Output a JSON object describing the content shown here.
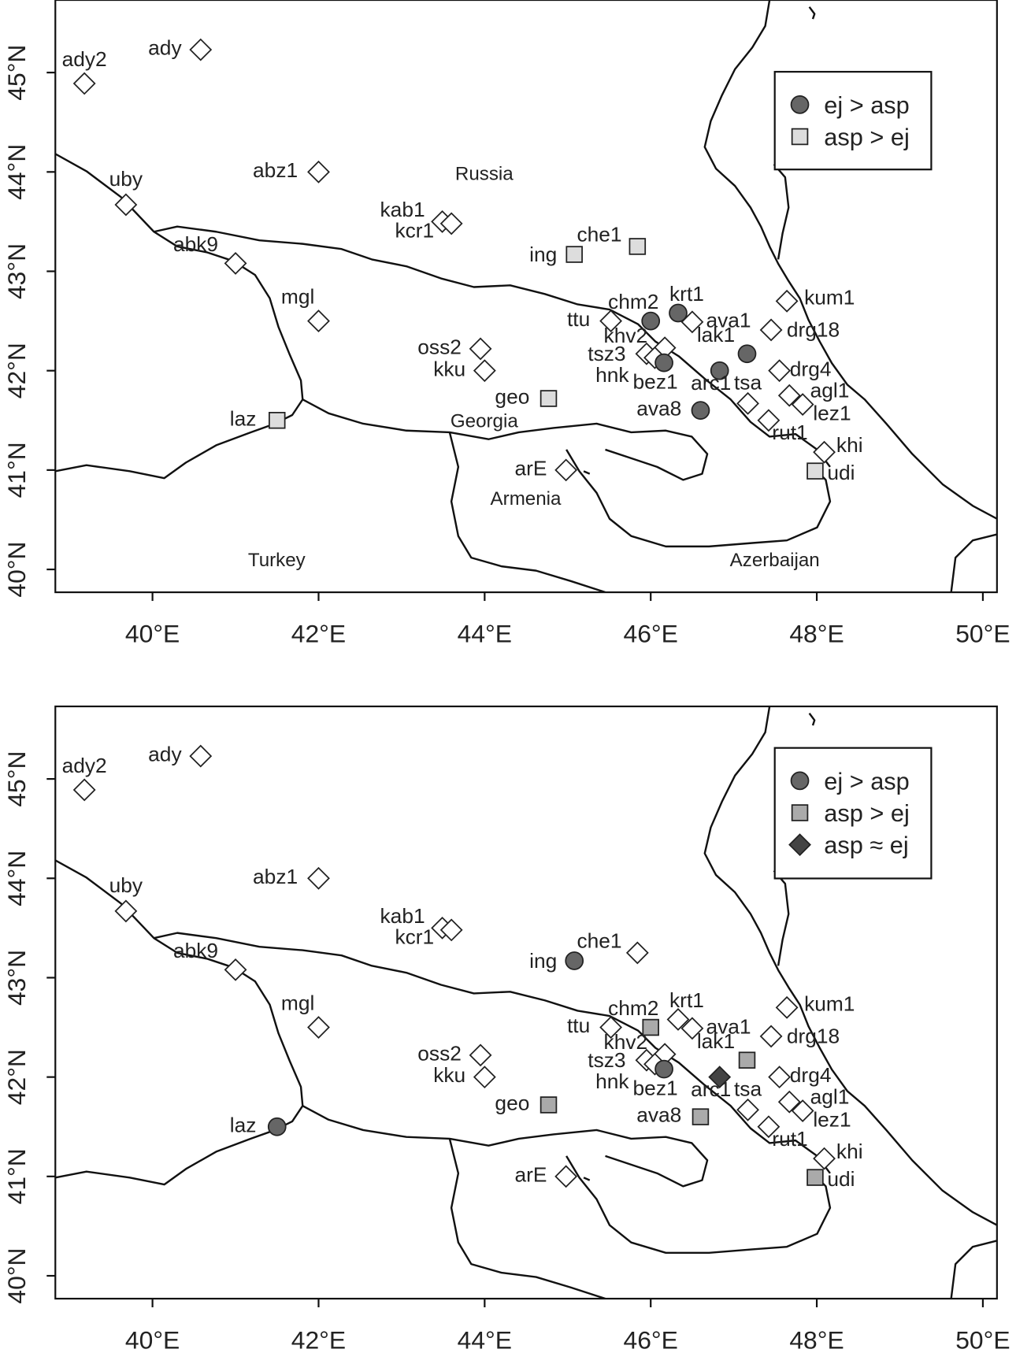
{
  "maps": [
    {
      "xlim": [
        38.83,
        50.17
      ],
      "ylim": [
        39.77,
        45.73
      ],
      "xticks": [
        {
          "value": 40,
          "label": "40°E"
        },
        {
          "value": 42,
          "label": "42°E"
        },
        {
          "value": 44,
          "label": "44°E"
        },
        {
          "value": 46,
          "label": "46°E"
        },
        {
          "value": 48,
          "label": "48°E"
        },
        {
          "value": 50,
          "label": "50°E"
        }
      ],
      "yticks": [
        {
          "value": 40,
          "label": "40°N"
        },
        {
          "value": 41,
          "label": "41°N"
        },
        {
          "value": 42,
          "label": "42°N"
        },
        {
          "value": 43,
          "label": "43°N"
        },
        {
          "value": 44,
          "label": "44°N"
        },
        {
          "value": 45,
          "label": "45°N"
        }
      ],
      "countries": [
        "Russia",
        "Georgia",
        "Armenia",
        "Turkey",
        "Azerbaijan"
      ],
      "legend": [
        {
          "label": "ej > asp",
          "shape": "circle",
          "color": "#666666"
        },
        {
          "label": "asp > ej",
          "shape": "square",
          "color": "#dddddd"
        }
      ],
      "points": [
        {
          "label": "ady",
          "lon": 40.58,
          "lat": 45.23,
          "shape": "diamond",
          "color": "#ffffff"
        },
        {
          "label": "ady2",
          "lon": 39.18,
          "lat": 44.89,
          "shape": "diamond",
          "color": "#ffffff"
        },
        {
          "label": "abz1",
          "lon": 42.0,
          "lat": 44.0,
          "shape": "diamond",
          "color": "#ffffff"
        },
        {
          "label": "uby",
          "lon": 39.68,
          "lat": 43.67,
          "shape": "diamond",
          "color": "#ffffff"
        },
        {
          "label": "kab1",
          "lon": 43.49,
          "lat": 43.5,
          "shape": "diamond",
          "color": "#ffffff"
        },
        {
          "label": "kcr1",
          "lon": 43.6,
          "lat": 43.48,
          "shape": "diamond",
          "color": "#ffffff"
        },
        {
          "label": "abk9",
          "lon": 41.0,
          "lat": 43.08,
          "shape": "diamond",
          "color": "#ffffff"
        },
        {
          "label": "che1",
          "lon": 45.84,
          "lat": 43.25,
          "shape": "square",
          "color": "#dddddd"
        },
        {
          "label": "ing",
          "lon": 45.08,
          "lat": 43.17,
          "shape": "square",
          "color": "#dddddd"
        },
        {
          "label": "mgl",
          "lon": 42.0,
          "lat": 42.5,
          "shape": "diamond",
          "color": "#ffffff"
        },
        {
          "label": "ttu",
          "lon": 45.52,
          "lat": 42.5,
          "shape": "diamond",
          "color": "#ffffff"
        },
        {
          "label": "chm2",
          "lon": 46.0,
          "lat": 42.5,
          "shape": "circle",
          "color": "#666666"
        },
        {
          "label": "krt1",
          "lon": 46.33,
          "lat": 42.58,
          "shape": "circle",
          "color": "#666666"
        },
        {
          "label": "ava1",
          "lon": 46.5,
          "lat": 42.49,
          "shape": "diamond",
          "color": "#ffffff"
        },
        {
          "label": "kum1",
          "lon": 47.64,
          "lat": 42.7,
          "shape": "diamond",
          "color": "#ffffff"
        },
        {
          "label": "drg18",
          "lon": 47.45,
          "lat": 42.41,
          "shape": "diamond",
          "color": "#ffffff"
        },
        {
          "label": "oss2",
          "lon": 43.95,
          "lat": 42.22,
          "shape": "diamond",
          "color": "#ffffff"
        },
        {
          "label": "kku",
          "lon": 44.0,
          "lat": 42.0,
          "shape": "diamond",
          "color": "#ffffff"
        },
        {
          "label": "khv2",
          "lon": 46.17,
          "lat": 42.23,
          "shape": "diamond",
          "color": "#ffffff"
        },
        {
          "label": "tsz3",
          "lon": 45.95,
          "lat": 42.17,
          "shape": "diamond",
          "color": "#ffffff"
        },
        {
          "label": "hnk",
          "lon": 46.05,
          "lat": 42.13,
          "shape": "diamond",
          "color": "#ffffff"
        },
        {
          "label": "bez1",
          "lon": 46.16,
          "lat": 42.08,
          "shape": "circle",
          "color": "#666666"
        },
        {
          "label": "lak1",
          "lon": 47.16,
          "lat": 42.17,
          "shape": "circle",
          "color": "#666666"
        },
        {
          "label": "arc1",
          "lon": 46.83,
          "lat": 42.0,
          "shape": "circle",
          "color": "#666666"
        },
        {
          "label": "drg4",
          "lon": 47.55,
          "lat": 42.0,
          "shape": "diamond",
          "color": "#ffffff"
        },
        {
          "label": "tsa",
          "lon": 47.17,
          "lat": 41.67,
          "shape": "diamond",
          "color": "#ffffff"
        },
        {
          "label": "agl1",
          "lon": 47.67,
          "lat": 41.75,
          "shape": "diamond",
          "color": "#ffffff"
        },
        {
          "label": "lez1",
          "lon": 47.83,
          "lat": 41.66,
          "shape": "diamond",
          "color": "#ffffff"
        },
        {
          "label": "geo",
          "lon": 44.77,
          "lat": 41.72,
          "shape": "square",
          "color": "#dddddd"
        },
        {
          "label": "ava8",
          "lon": 46.6,
          "lat": 41.6,
          "shape": "circle",
          "color": "#666666"
        },
        {
          "label": "rut1",
          "lon": 47.42,
          "lat": 41.5,
          "shape": "diamond",
          "color": "#ffffff"
        },
        {
          "label": "laz",
          "lon": 41.5,
          "lat": 41.5,
          "shape": "square",
          "color": "#dddddd"
        },
        {
          "label": "khi",
          "lon": 48.09,
          "lat": 41.18,
          "shape": "diamond",
          "color": "#ffffff"
        },
        {
          "label": "udi",
          "lon": 47.98,
          "lat": 40.99,
          "shape": "square",
          "color": "#dddddd"
        },
        {
          "label": "arE",
          "lon": 44.98,
          "lat": 41.0,
          "shape": "diamond",
          "color": "#ffffff"
        }
      ]
    },
    {
      "xlim": [
        38.83,
        50.17
      ],
      "ylim": [
        39.77,
        45.73
      ],
      "xticks": [
        {
          "value": 40,
          "label": "40°E"
        },
        {
          "value": 42,
          "label": "42°E"
        },
        {
          "value": 44,
          "label": "44°E"
        },
        {
          "value": 46,
          "label": "46°E"
        },
        {
          "value": 48,
          "label": "48°E"
        },
        {
          "value": 50,
          "label": "50°E"
        }
      ],
      "yticks": [
        {
          "value": 40,
          "label": "40°N"
        },
        {
          "value": 41,
          "label": "41°N"
        },
        {
          "value": 42,
          "label": "42°N"
        },
        {
          "value": 43,
          "label": "43°N"
        },
        {
          "value": 44,
          "label": "44°N"
        },
        {
          "value": 45,
          "label": "45°N"
        }
      ],
      "legend": [
        {
          "label": "ej > asp",
          "shape": "circle",
          "color": "#666666"
        },
        {
          "label": "asp > ej",
          "shape": "square",
          "color": "#aaaaaa"
        },
        {
          "label": "asp ≈ ej",
          "shape": "diamond",
          "color": "#444444"
        }
      ],
      "points": [
        {
          "label": "ady",
          "lon": 40.58,
          "lat": 45.23,
          "shape": "diamond",
          "color": "#ffffff"
        },
        {
          "label": "ady2",
          "lon": 39.18,
          "lat": 44.89,
          "shape": "diamond",
          "color": "#ffffff"
        },
        {
          "label": "abz1",
          "lon": 42.0,
          "lat": 44.0,
          "shape": "diamond",
          "color": "#ffffff"
        },
        {
          "label": "uby",
          "lon": 39.68,
          "lat": 43.67,
          "shape": "diamond",
          "color": "#ffffff"
        },
        {
          "label": "kab1",
          "lon": 43.49,
          "lat": 43.5,
          "shape": "diamond",
          "color": "#ffffff"
        },
        {
          "label": "kcr1",
          "lon": 43.6,
          "lat": 43.48,
          "shape": "diamond",
          "color": "#ffffff"
        },
        {
          "label": "abk9",
          "lon": 41.0,
          "lat": 43.08,
          "shape": "diamond",
          "color": "#ffffff"
        },
        {
          "label": "che1",
          "lon": 45.84,
          "lat": 43.25,
          "shape": "diamond",
          "color": "#ffffff"
        },
        {
          "label": "ing",
          "lon": 45.08,
          "lat": 43.17,
          "shape": "circle",
          "color": "#666666"
        },
        {
          "label": "mgl",
          "lon": 42.0,
          "lat": 42.5,
          "shape": "diamond",
          "color": "#ffffff"
        },
        {
          "label": "ttu",
          "lon": 45.52,
          "lat": 42.5,
          "shape": "diamond",
          "color": "#ffffff"
        },
        {
          "label": "chm2",
          "lon": 46.0,
          "lat": 42.5,
          "shape": "square",
          "color": "#aaaaaa"
        },
        {
          "label": "krt1",
          "lon": 46.33,
          "lat": 42.58,
          "shape": "diamond",
          "color": "#ffffff"
        },
        {
          "label": "ava1",
          "lon": 46.5,
          "lat": 42.49,
          "shape": "diamond",
          "color": "#ffffff"
        },
        {
          "label": "kum1",
          "lon": 47.64,
          "lat": 42.7,
          "shape": "diamond",
          "color": "#ffffff"
        },
        {
          "label": "drg18",
          "lon": 47.45,
          "lat": 42.41,
          "shape": "diamond",
          "color": "#ffffff"
        },
        {
          "label": "oss2",
          "lon": 43.95,
          "lat": 42.22,
          "shape": "diamond",
          "color": "#ffffff"
        },
        {
          "label": "kku",
          "lon": 44.0,
          "lat": 42.0,
          "shape": "diamond",
          "color": "#ffffff"
        },
        {
          "label": "khv2",
          "lon": 46.17,
          "lat": 42.23,
          "shape": "diamond",
          "color": "#ffffff"
        },
        {
          "label": "tsz3",
          "lon": 45.95,
          "lat": 42.17,
          "shape": "diamond",
          "color": "#ffffff"
        },
        {
          "label": "hnk",
          "lon": 46.05,
          "lat": 42.13,
          "shape": "diamond",
          "color": "#ffffff"
        },
        {
          "label": "bez1",
          "lon": 46.16,
          "lat": 42.08,
          "shape": "circle",
          "color": "#666666"
        },
        {
          "label": "lak1",
          "lon": 47.16,
          "lat": 42.17,
          "shape": "square",
          "color": "#aaaaaa"
        },
        {
          "label": "arc1",
          "lon": 46.83,
          "lat": 42.0,
          "shape": "diamond",
          "color": "#444444"
        },
        {
          "label": "drg4",
          "lon": 47.55,
          "lat": 42.0,
          "shape": "diamond",
          "color": "#ffffff"
        },
        {
          "label": "tsa",
          "lon": 47.17,
          "lat": 41.67,
          "shape": "diamond",
          "color": "#ffffff"
        },
        {
          "label": "agl1",
          "lon": 47.67,
          "lat": 41.75,
          "shape": "diamond",
          "color": "#ffffff"
        },
        {
          "label": "lez1",
          "lon": 47.83,
          "lat": 41.66,
          "shape": "diamond",
          "color": "#ffffff"
        },
        {
          "label": "geo",
          "lon": 44.77,
          "lat": 41.72,
          "shape": "square",
          "color": "#aaaaaa"
        },
        {
          "label": "ava8",
          "lon": 46.6,
          "lat": 41.6,
          "shape": "square",
          "color": "#aaaaaa"
        },
        {
          "label": "rut1",
          "lon": 47.42,
          "lat": 41.5,
          "shape": "diamond",
          "color": "#ffffff"
        },
        {
          "label": "laz",
          "lon": 41.5,
          "lat": 41.5,
          "shape": "circle",
          "color": "#666666"
        },
        {
          "label": "khi",
          "lon": 48.09,
          "lat": 41.18,
          "shape": "diamond",
          "color": "#ffffff"
        },
        {
          "label": "udi",
          "lon": 47.98,
          "lat": 40.99,
          "shape": "square",
          "color": "#aaaaaa"
        },
        {
          "label": "arE",
          "lon": 44.98,
          "lat": 41.0,
          "shape": "diamond",
          "color": "#ffffff"
        }
      ]
    }
  ]
}
